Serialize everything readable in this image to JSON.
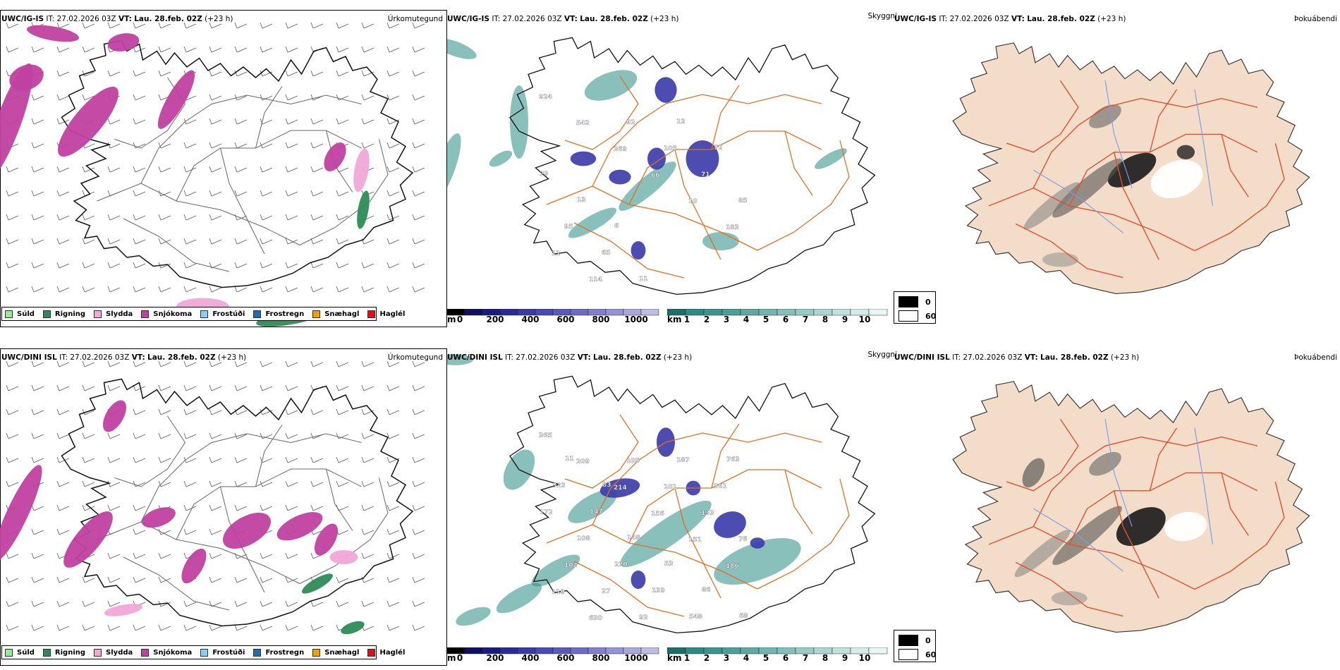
{
  "rows": [
    {
      "id": "top",
      "model": "UWC/IG-IS",
      "it_label": "IT:",
      "it_value": "27.02.2026 03Z",
      "vt_label": "VT:",
      "vt_value": "Lau. 28.feb. 02Z",
      "lead": "(+23 h)",
      "precip_title": "Úrkomutegund",
      "cloud_title": "Skyggni",
      "fog_title": "Þokuábendi",
      "cloud_labels": [
        "924",
        "542",
        "269",
        "66",
        "10",
        "183",
        "11",
        "114",
        "92",
        "105",
        "71",
        "85",
        "95",
        "65",
        "11",
        "12",
        "72",
        "29",
        "13",
        "6"
      ]
    },
    {
      "id": "bottom",
      "model": "UWC/DINI ISL",
      "it_label": "IT:",
      "it_value": "27.02.2026 03Z",
      "vt_label": "VT:",
      "vt_value": "Lau. 28.feb. 02Z",
      "lead": "(+23 h)",
      "precip_title": "Úrkomutegund",
      "cloud_title": "Skyggni",
      "fog_title": "Þokuábendi",
      "cloud_labels": [
        "365",
        "209",
        "214",
        "156",
        "151",
        "186",
        "119",
        "630",
        "105",
        "101",
        "133",
        "76",
        "102",
        "27",
        "92",
        "187",
        "261",
        "172",
        "108",
        "220",
        "139",
        "548",
        "763",
        "313",
        "147",
        "148",
        "53",
        "86",
        "68",
        "11",
        "83"
      ]
    }
  ],
  "precip_legend": [
    {
      "label": "Súld",
      "color": "#90ee90"
    },
    {
      "label": "Rigning",
      "color": "#2e8b57"
    },
    {
      "label": "Slydda",
      "color": "#f0a8d8"
    },
    {
      "label": "Snjókoma",
      "color": "#c040a0"
    },
    {
      "label": "Frostúði",
      "color": "#87cefa"
    },
    {
      "label": "Frostregn",
      "color": "#1e6eb4"
    },
    {
      "label": "Snæhagl",
      "color": "#f0a000"
    },
    {
      "label": "Haglél",
      "color": "#e01010"
    }
  ],
  "cloudbase_bar": {
    "unit": "m",
    "ticks": [
      "0",
      "200",
      "400",
      "600",
      "800",
      "1000"
    ]
  },
  "visibility_bar": {
    "unit": "km",
    "ticks": [
      "1",
      "2",
      "3",
      "4",
      "5",
      "6",
      "7",
      "8",
      "9",
      "10"
    ]
  },
  "fog_legend": [
    {
      "label": "0",
      "color": "#000000"
    },
    {
      "label": "60",
      "color": "#ffffff"
    }
  ],
  "colors": {
    "coast": "#1a1a1a",
    "roads": "#e07020",
    "fog_land": "#f3dcc8",
    "fog_road": "#e05030",
    "fog_river": "#7a9cf0",
    "cloud_blue": "#3a3aa8",
    "vis_teal": "#2a8c84",
    "snow": "#c040a0",
    "rain": "#2e8b57"
  }
}
